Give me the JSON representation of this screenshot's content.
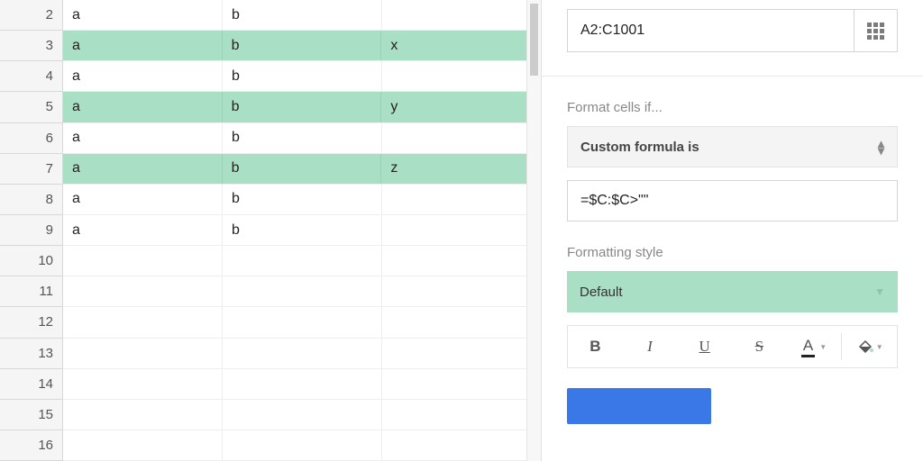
{
  "sheet": {
    "row_numbers": [
      2,
      3,
      4,
      5,
      6,
      7,
      8,
      9,
      10,
      11,
      12,
      13,
      14,
      15,
      16
    ],
    "highlight_color": "#a9dfc4",
    "rows": [
      {
        "hl": false,
        "cells": [
          "a",
          "b",
          ""
        ]
      },
      {
        "hl": true,
        "cells": [
          "a",
          "b",
          "x"
        ]
      },
      {
        "hl": false,
        "cells": [
          "a",
          "b",
          ""
        ]
      },
      {
        "hl": true,
        "cells": [
          "a",
          "b",
          "y"
        ]
      },
      {
        "hl": false,
        "cells": [
          "a",
          "b",
          ""
        ]
      },
      {
        "hl": true,
        "cells": [
          "a",
          "b",
          "z"
        ]
      },
      {
        "hl": false,
        "cells": [
          "a",
          "b",
          ""
        ]
      },
      {
        "hl": false,
        "cells": [
          "a",
          "b",
          ""
        ]
      },
      {
        "hl": false,
        "cells": [
          "",
          "",
          ""
        ]
      },
      {
        "hl": false,
        "cells": [
          "",
          "",
          ""
        ]
      },
      {
        "hl": false,
        "cells": [
          "",
          "",
          ""
        ]
      },
      {
        "hl": false,
        "cells": [
          "",
          "",
          ""
        ]
      },
      {
        "hl": false,
        "cells": [
          "",
          "",
          ""
        ]
      },
      {
        "hl": false,
        "cells": [
          "",
          "",
          ""
        ]
      },
      {
        "hl": false,
        "cells": [
          "",
          "",
          ""
        ]
      }
    ]
  },
  "panel": {
    "range_value": "A2:C1001",
    "section_condition_label": "Format cells if...",
    "condition_selected": "Custom formula is",
    "formula_value": "=$C:$C>\"\"",
    "section_style_label": "Formatting style",
    "style_selected": "Default",
    "style_bg": "#a9dfc4",
    "toolbar": {
      "bold": "B",
      "italic": "I",
      "underline": "U",
      "strike": "S",
      "text_color": "A"
    },
    "primary_btn_color": "#3b78e7"
  }
}
